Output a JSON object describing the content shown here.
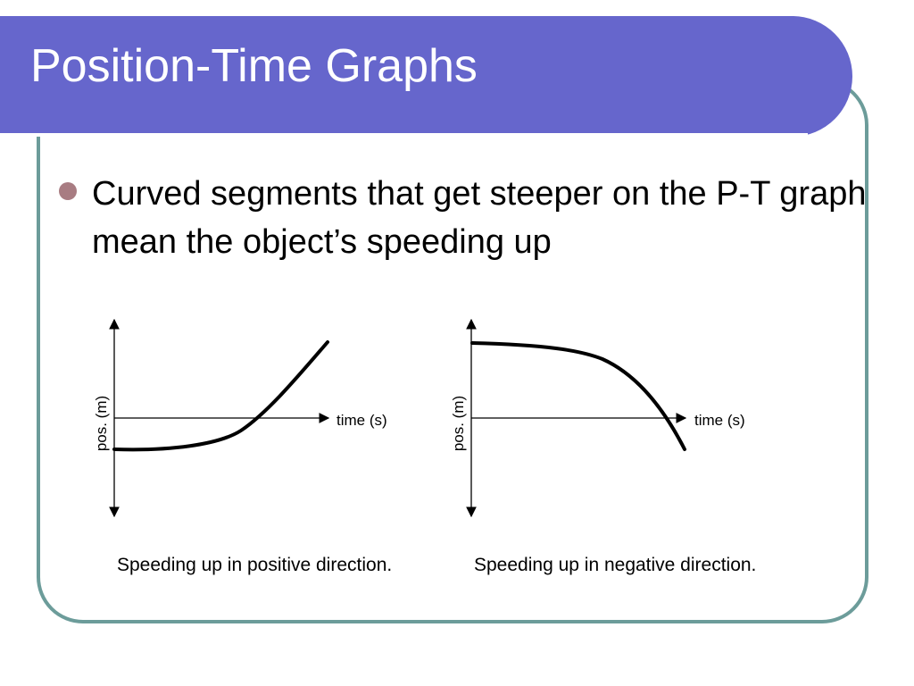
{
  "slide": {
    "title": "Position-Time Graphs",
    "bullet": "Curved segments that get steeper on the P-T graph mean the object’s speeding up"
  },
  "graphs": [
    {
      "y_axis_label": "pos. (m)",
      "x_axis_label": "time (s)",
      "caption": "Speeding up in positive direction."
    },
    {
      "y_axis_label": "pos. (m)",
      "x_axis_label": "time (s)",
      "caption": "Speeding up in negative direction."
    }
  ],
  "colors": {
    "title_bar": "#6666cc",
    "frame_border": "#6c9c9a",
    "bullet": "#a87c82"
  }
}
